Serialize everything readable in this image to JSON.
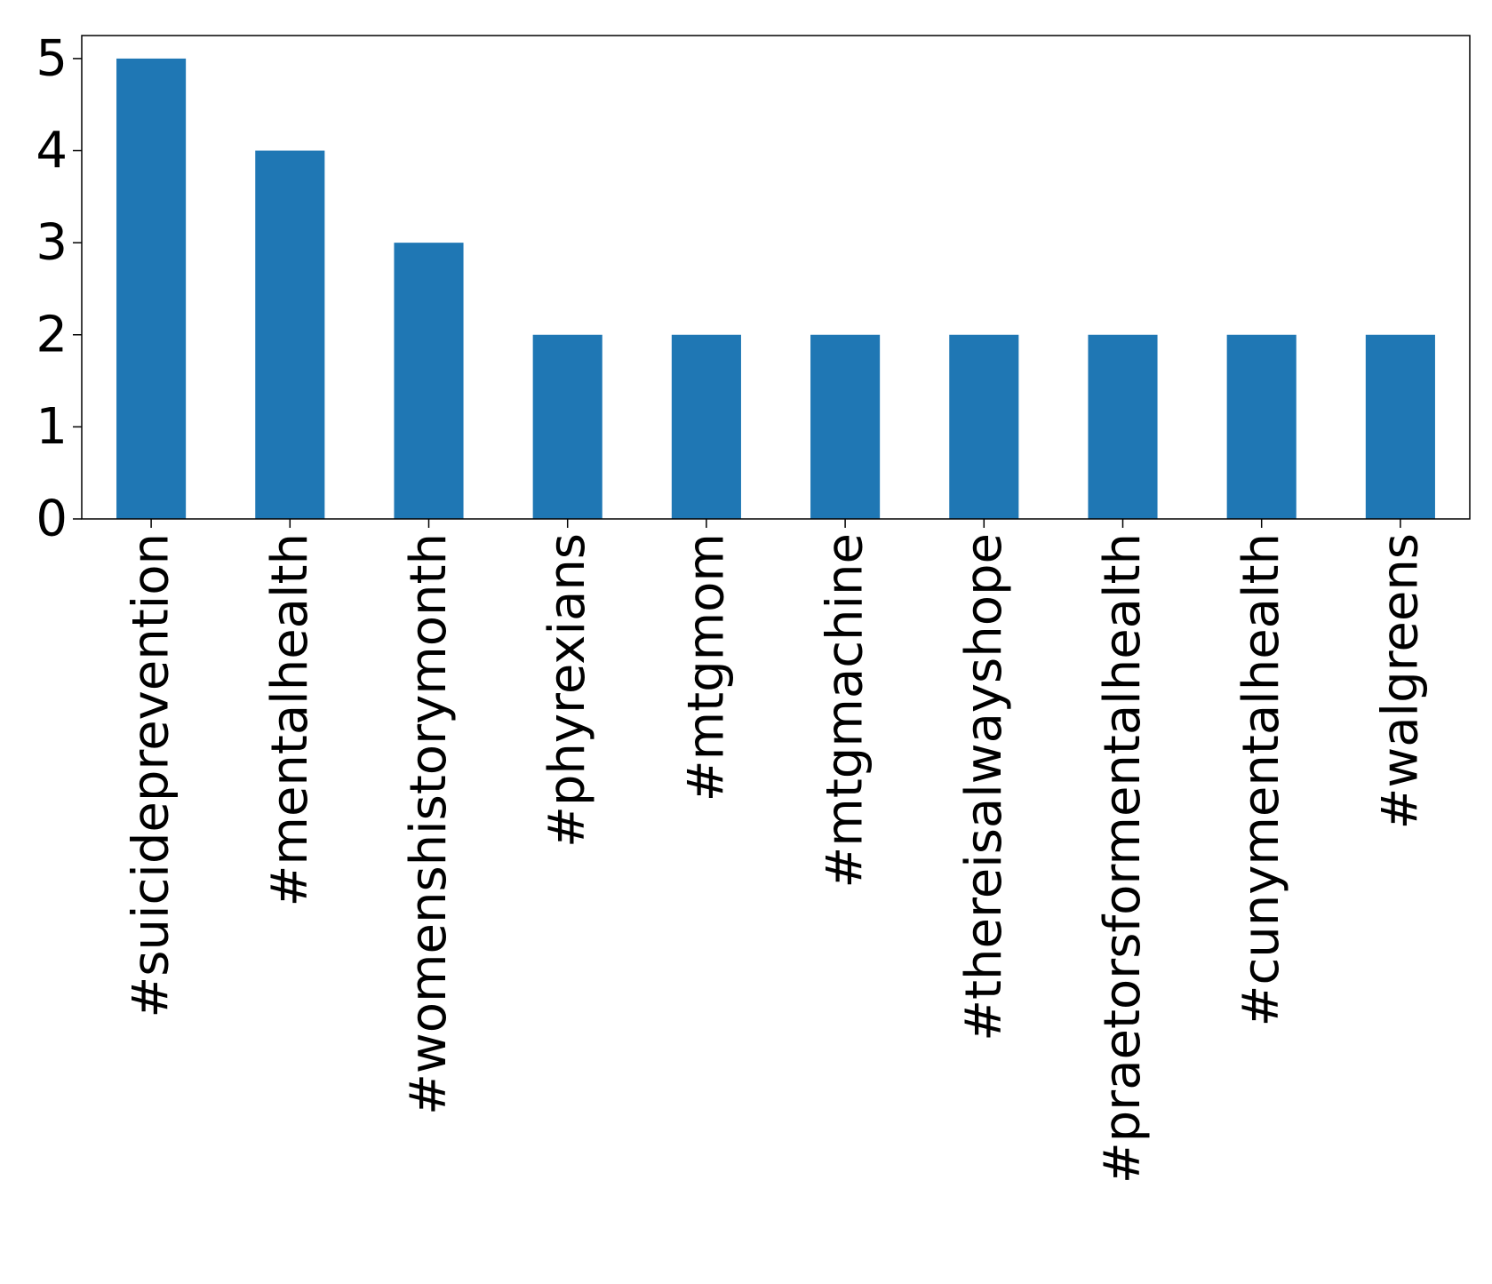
{
  "chart_data": {
    "type": "bar",
    "title": "",
    "xlabel": "",
    "ylabel": "",
    "categories": [
      "#suicideprevention",
      "#mentalhealth",
      "#womenshistorymonth",
      "#phyrexians",
      "#mtgmom",
      "#mtgmachine",
      "#thereisalwayshope",
      "#praetorsformentalhealth",
      "#cunymentalhealth",
      "#walgreens"
    ],
    "values": [
      5,
      4,
      3,
      2,
      2,
      2,
      2,
      2,
      2,
      2
    ],
    "ylim": [
      0,
      5.25
    ],
    "yticks": [
      0,
      1,
      2,
      3,
      4,
      5
    ],
    "grid": false,
    "legend": "none",
    "bar_color": "#1f77b4",
    "axis_color": "#000000"
  }
}
